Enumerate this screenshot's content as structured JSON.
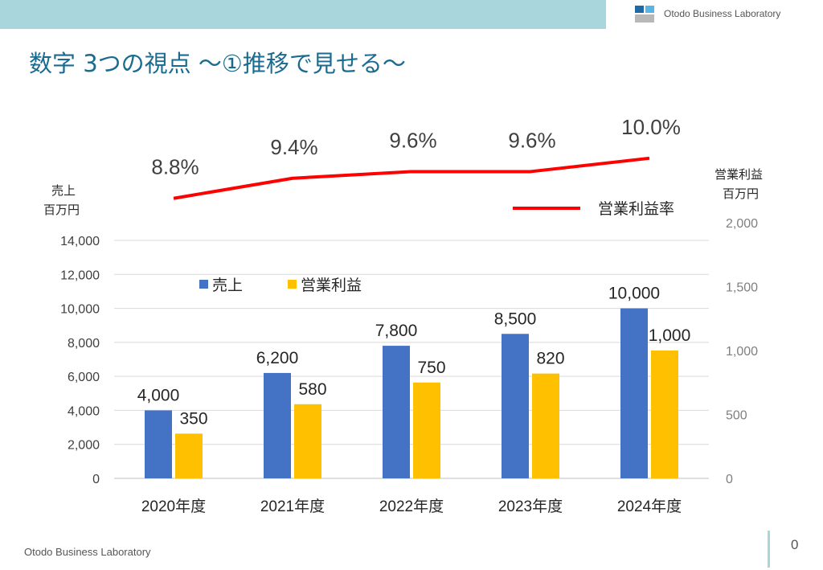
{
  "header": {
    "company": "Otodo Business Laboratory"
  },
  "slide": {
    "title": "数字 3つの視点 ～①推移で見せる～",
    "footer_company": "Otodo Business Laboratory",
    "page_number": "0"
  },
  "colors": {
    "top_bar": "#a8d6dc",
    "title": "#1a6b8f",
    "sales": "#4472c4",
    "profit": "#ffc000",
    "margin_line": "#ff0000"
  },
  "chart_data": {
    "type": "bar",
    "categories": [
      "2020年度",
      "2021年度",
      "2022年度",
      "2023年度",
      "2024年度"
    ],
    "series": [
      {
        "name": "売上",
        "axis": "left",
        "values": [
          4000,
          6200,
          7800,
          8500,
          10000
        ],
        "labels": [
          "4,000",
          "6,200",
          "7,800",
          "8,500",
          "10,000"
        ]
      },
      {
        "name": "営業利益",
        "axis": "right",
        "values": [
          350,
          580,
          750,
          820,
          1000
        ],
        "labels": [
          "350",
          "580",
          "750",
          "820",
          "1,000"
        ]
      }
    ],
    "line_series": {
      "name": "営業利益率",
      "type": "line",
      "values": [
        8.8,
        9.4,
        9.6,
        9.6,
        10.0
      ],
      "labels": [
        "8.8%",
        "9.4%",
        "9.6%",
        "9.6%",
        "10.0%"
      ]
    },
    "left_axis": {
      "label_line1": "売上",
      "label_line2": "百万円",
      "ylim": [
        0,
        14000
      ],
      "ticks": [
        0,
        2000,
        4000,
        6000,
        8000,
        10000,
        12000,
        14000
      ],
      "tick_labels": [
        "0",
        "2,000",
        "4,000",
        "6,000",
        "8,000",
        "10,000",
        "12,000",
        "14,000"
      ]
    },
    "right_axis": {
      "label_line1": "営業利益",
      "label_line2": "百万円",
      "ylim": [
        0,
        2000
      ],
      "ticks": [
        0,
        500,
        1000,
        1500,
        2000
      ],
      "tick_labels": [
        "0",
        "500",
        "1,000",
        "1,500",
        "2,000"
      ]
    },
    "legend": {
      "bars_placement": "top-left",
      "line_placement": "right"
    },
    "grid": true
  }
}
